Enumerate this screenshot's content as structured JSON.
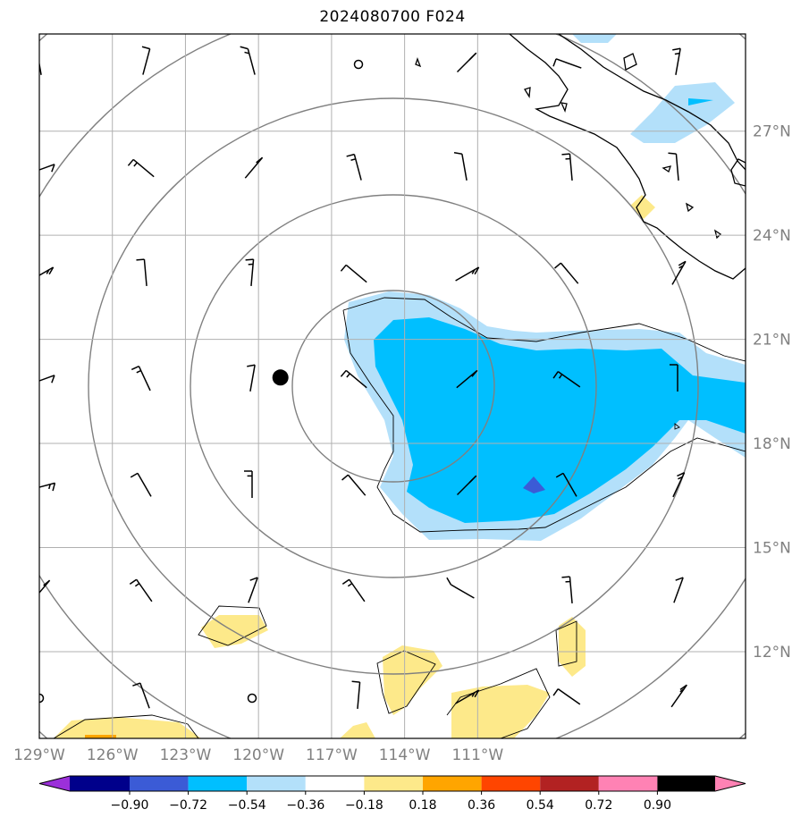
{
  "title": "2024080700 F024",
  "map": {
    "lon_range": [
      -129,
      -100
    ],
    "lat_range": [
      9.5,
      29.8
    ],
    "lat_ticks": [
      {
        "value": 12,
        "label": "12°N"
      },
      {
        "value": 15,
        "label": "15°N"
      },
      {
        "value": 18,
        "label": "18°N"
      },
      {
        "value": 21,
        "label": "21°N"
      },
      {
        "value": 24,
        "label": "24°N"
      },
      {
        "value": 27,
        "label": "27°N"
      }
    ],
    "lon_ticks": [
      {
        "value": -129,
        "label": "129°W"
      },
      {
        "value": -126,
        "label": "126°W"
      },
      {
        "value": -123,
        "label": "123°W"
      },
      {
        "value": -120,
        "label": "120°W"
      },
      {
        "value": -117,
        "label": "117°W"
      },
      {
        "value": -114,
        "label": "114°W"
      },
      {
        "value": -111,
        "label": "111°W"
      }
    ],
    "storm_center": {
      "lon": -119.1,
      "lat": 19.9
    },
    "colors": {
      "light_blue": "#b3e0fa",
      "deep_sky": "#00bfff",
      "royal": "#3b5bd6",
      "yellow": "#fde98a",
      "orange": "#ffa500",
      "grid": "#b0b0b0",
      "range_ring": "#808080"
    }
  },
  "colorbar": {
    "ticks": [
      "−0.90",
      "−0.72",
      "−0.54",
      "−0.36",
      "−0.18",
      "0.18",
      "0.36",
      "0.54",
      "0.72",
      "0.90"
    ],
    "colors": [
      "#9b30d9",
      "#00008b",
      "#3b5bd6",
      "#00bfff",
      "#b3e0fa",
      "#ffffff",
      "#fde98a",
      "#ffa500",
      "#ff4500",
      "#b22222",
      "#ff82b4"
    ]
  }
}
